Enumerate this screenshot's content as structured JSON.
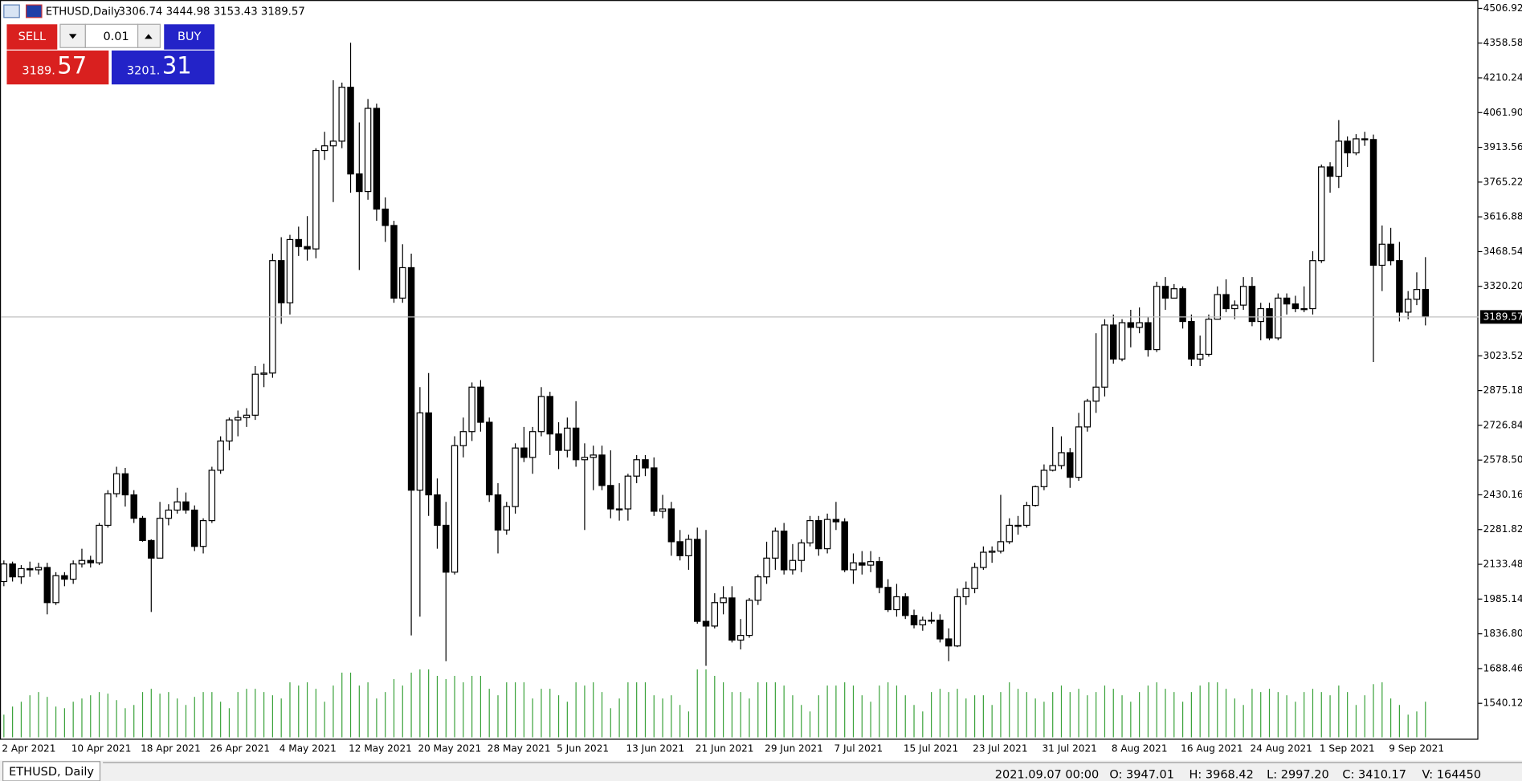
{
  "chart_data": {
    "type": "candlestick",
    "symbol": "ETHUSD,Daily",
    "quote": "3306.74 3444.98 3153.43 3189.57",
    "categories": [
      "2 Apr 2021",
      null,
      null,
      null,
      null,
      null,
      null,
      null,
      "10 Apr 2021",
      null,
      null,
      null,
      null,
      null,
      null,
      null,
      "18 Apr 2021",
      null,
      null,
      null,
      null,
      null,
      null,
      null,
      "26 Apr 2021",
      null,
      null,
      null,
      null,
      null,
      null,
      null,
      "4 May 2021",
      null,
      null,
      null,
      null,
      null,
      null,
      null,
      "12 May 2021",
      null,
      null,
      null,
      null,
      null,
      null,
      null,
      "20 May 2021",
      null,
      null,
      null,
      null,
      null,
      null,
      null,
      "28 May 2021",
      null,
      null,
      null,
      null,
      null,
      null,
      null,
      "5 Jun 2021",
      null,
      null,
      null,
      null,
      null,
      null,
      null,
      "13 Jun 2021",
      null,
      null,
      null,
      null,
      null,
      null,
      null,
      "21 Jun 2021",
      null,
      null,
      null,
      null,
      null,
      null,
      null,
      "29 Jun 2021",
      null,
      null,
      null,
      null,
      null,
      null,
      null,
      "7 Jul 2021",
      null,
      null,
      null,
      null,
      null,
      null,
      null,
      "15 Jul 2021",
      null,
      null,
      null,
      null,
      null,
      null,
      null,
      "23 Jul 2021",
      null,
      null,
      null,
      null,
      null,
      null,
      null,
      "31 Jul 2021",
      null,
      null,
      null,
      null,
      null,
      null,
      null,
      "8 Aug 2021",
      null,
      null,
      null,
      null,
      null,
      null,
      null,
      "16 Aug 2021",
      null,
      null,
      null,
      null,
      null,
      null,
      null,
      "24 Aug 2021",
      null,
      null,
      null,
      null,
      null,
      null,
      null,
      "1 Sep 2021",
      null,
      null,
      null,
      null,
      null,
      null,
      null,
      "9 Sep 2021",
      null,
      null,
      null,
      null
    ],
    "open": [
      2060,
      2135,
      2080,
      2115,
      2110,
      2120,
      1970,
      2085,
      2070,
      2135,
      2150,
      2140,
      2300,
      2435,
      2520,
      2430,
      2330,
      2235,
      2160,
      2330,
      2365,
      2400,
      2365,
      2210,
      2320,
      2535,
      2660,
      2750,
      2760,
      2770,
      2945,
      2950,
      3430,
      3250,
      3520,
      3490,
      3480,
      3900,
      3920,
      3940,
      4170,
      3800,
      3725,
      4080,
      3650,
      3580,
      3270,
      3400,
      2450,
      2780,
      2430,
      2300,
      2100,
      2640,
      2700,
      2890,
      2740,
      2430,
      2280,
      2380,
      2630,
      2590,
      2700,
      2850,
      2690,
      2620,
      2715,
      2580,
      2590,
      2600,
      2470,
      2370,
      2370,
      2510,
      2580,
      2545,
      2360,
      2370,
      2230,
      2170,
      2240,
      1890,
      1870,
      1970,
      1990,
      1810,
      1830,
      1980,
      2080,
      2160,
      2275,
      2110,
      2150,
      2225,
      2320,
      2200,
      2325,
      2315,
      2110,
      2140,
      2130,
      2145,
      2035,
      1940,
      1995,
      1915,
      1875,
      1895,
      1895,
      1815,
      1785,
      1995,
      2030,
      2120,
      2185,
      2190,
      2230,
      2300,
      2300,
      2385,
      2465,
      2535,
      2555,
      2610,
      2505,
      2720,
      2830,
      2890,
      3155,
      3010,
      3165,
      3145,
      3165,
      3050,
      3320,
      3270,
      3310,
      3170,
      3010,
      3030,
      3180,
      3285,
      3225,
      3240,
      3320,
      3170,
      3225,
      3100,
      3270,
      3245,
      3225,
      3225,
      3430,
      3830,
      3790,
      3940,
      3890,
      3950,
      3947.01,
      3410.17,
      3500,
      3430,
      3210,
      3265,
      3306.74
    ],
    "high": [
      2150,
      2145,
      2130,
      2145,
      2140,
      2140,
      2100,
      2100,
      2150,
      2200,
      2170,
      2310,
      2450,
      2550,
      2545,
      2450,
      2340,
      2240,
      2400,
      2390,
      2460,
      2440,
      2385,
      2330,
      2550,
      2680,
      2760,
      2790,
      2800,
      2980,
      2990,
      3460,
      3530,
      3540,
      3575,
      3620,
      3910,
      3980,
      4200,
      4190,
      4360,
      4020,
      4120,
      4100,
      3700,
      3600,
      3500,
      3460,
      2890,
      2950,
      2500,
      2400,
      2680,
      2760,
      2910,
      2920,
      2760,
      2480,
      2400,
      2650,
      2720,
      2720,
      2890,
      2870,
      2740,
      2760,
      2830,
      2650,
      2640,
      2640,
      2620,
      2480,
      2520,
      2600,
      2600,
      2590,
      2430,
      2400,
      2280,
      2260,
      2290,
      2280,
      2010,
      2040,
      2040,
      1900,
      1990,
      2090,
      2230,
      2290,
      2310,
      2220,
      2240,
      2340,
      2340,
      2350,
      2400,
      2330,
      2180,
      2190,
      2190,
      2165,
      2070,
      2050,
      2010,
      1940,
      1910,
      1930,
      1920,
      1860,
      2030,
      2060,
      2140,
      2210,
      2210,
      2430,
      2330,
      2340,
      2400,
      2470,
      2560,
      2720,
      2680,
      2630,
      2780,
      2840,
      3120,
      3180,
      3200,
      3180,
      3220,
      3230,
      3190,
      3340,
      3360,
      3330,
      3320,
      3200,
      3110,
      3200,
      3320,
      3350,
      3260,
      3360,
      3360,
      3250,
      3250,
      3290,
      3290,
      3280,
      3320,
      3470,
      3840,
      3850,
      4030,
      3960,
      3970,
      3980,
      3968.42,
      3580,
      3570,
      3510,
      3300,
      3380,
      3444.98
    ],
    "low": [
      2040,
      2060,
      2050,
      2080,
      2090,
      1920,
      1960,
      2040,
      2050,
      2120,
      2120,
      2130,
      2290,
      2420,
      2380,
      2310,
      2230,
      1930,
      2160,
      2300,
      2350,
      2350,
      2190,
      2180,
      2310,
      2520,
      2620,
      2680,
      2720,
      2750,
      2890,
      2930,
      3160,
      3200,
      3450,
      3430,
      3440,
      3860,
      3680,
      3910,
      3720,
      3390,
      3690,
      3600,
      3510,
      3250,
      3250,
      1830,
      1910,
      2340,
      2200,
      1720,
      2090,
      2590,
      2660,
      2700,
      2400,
      2180,
      2260,
      2350,
      2570,
      2520,
      2680,
      2600,
      2540,
      2590,
      2550,
      2280,
      2450,
      2450,
      2330,
      2320,
      2320,
      2480,
      2510,
      2340,
      2330,
      2170,
      2150,
      2110,
      1880,
      1700,
      1860,
      1920,
      1800,
      1770,
      1820,
      1960,
      2050,
      2110,
      2090,
      2090,
      2100,
      2210,
      2170,
      2180,
      2280,
      2100,
      2050,
      2090,
      2100,
      2010,
      1930,
      1910,
      1900,
      1860,
      1850,
      1880,
      1800,
      1720,
      1780,
      1960,
      2010,
      2110,
      2140,
      2180,
      2220,
      2260,
      2290,
      2380,
      2450,
      2530,
      2540,
      2460,
      2490,
      2700,
      2780,
      2850,
      2990,
      3000,
      3060,
      3120,
      3020,
      3040,
      3220,
      3270,
      3140,
      2980,
      2980,
      3020,
      3180,
      3210,
      3180,
      3220,
      3150,
      3090,
      3090,
      3090,
      3200,
      3210,
      3210,
      3200,
      3420,
      3720,
      3740,
      3830,
      3880,
      3920,
      2997.2,
      3300,
      3410,
      3170,
      3180,
      3240,
      3153.43
    ],
    "close": [
      2135,
      2080,
      2115,
      2110,
      2120,
      1970,
      2085,
      2070,
      2135,
      2150,
      2140,
      2300,
      2435,
      2520,
      2430,
      2330,
      2235,
      2160,
      2330,
      2365,
      2400,
      2365,
      2210,
      2320,
      2535,
      2660,
      2750,
      2760,
      2770,
      2945,
      2950,
      3430,
      3250,
      3520,
      3490,
      3480,
      3900,
      3920,
      3940,
      4170,
      3800,
      3725,
      4080,
      3650,
      3580,
      3270,
      3400,
      2450,
      2780,
      2430,
      2300,
      2100,
      2640,
      2700,
      2890,
      2740,
      2430,
      2280,
      2380,
      2630,
      2590,
      2700,
      2850,
      2690,
      2620,
      2715,
      2580,
      2590,
      2600,
      2470,
      2370,
      2370,
      2510,
      2580,
      2545,
      2360,
      2370,
      2230,
      2170,
      2240,
      1890,
      1870,
      1970,
      1990,
      1810,
      1830,
      1980,
      2080,
      2160,
      2275,
      2110,
      2150,
      2225,
      2320,
      2200,
      2325,
      2315,
      2110,
      2140,
      2130,
      2145,
      2035,
      1940,
      1995,
      1915,
      1875,
      1895,
      1895,
      1815,
      1785,
      1995,
      2030,
      2120,
      2185,
      2190,
      2230,
      2300,
      2300,
      2385,
      2465,
      2535,
      2555,
      2610,
      2505,
      2720,
      2830,
      2890,
      3155,
      3010,
      3165,
      3145,
      3165,
      3050,
      3320,
      3270,
      3310,
      3170,
      3010,
      3030,
      3180,
      3285,
      3225,
      3240,
      3320,
      3170,
      3225,
      3100,
      3270,
      3245,
      3225,
      3225,
      3430,
      3830,
      3790,
      3940,
      3890,
      3950,
      3947.01,
      3410.17,
      3500,
      3430,
      3210,
      3265,
      3306.74,
      3189.57
    ],
    "volume": [
      70000,
      95000,
      110000,
      130000,
      140000,
      125000,
      95000,
      90000,
      110000,
      120000,
      130000,
      140000,
      135000,
      115000,
      90000,
      100000,
      140000,
      150000,
      135000,
      140000,
      120000,
      100000,
      125000,
      140000,
      140000,
      110000,
      90000,
      140000,
      150000,
      150000,
      140000,
      130000,
      120000,
      170000,
      160000,
      170000,
      150000,
      110000,
      160000,
      200000,
      200000,
      160000,
      170000,
      120000,
      140000,
      180000,
      160000,
      200000,
      210000,
      210000,
      190000,
      180000,
      190000,
      170000,
      190000,
      190000,
      150000,
      130000,
      170000,
      170000,
      170000,
      120000,
      150000,
      150000,
      130000,
      110000,
      170000,
      160000,
      170000,
      140000,
      90000,
      120000,
      170000,
      170000,
      170000,
      130000,
      120000,
      130000,
      100000,
      80000,
      210000,
      210000,
      190000,
      170000,
      140000,
      140000,
      120000,
      170000,
      170000,
      170000,
      160000,
      130000,
      100000,
      80000,
      130000,
      160000,
      160000,
      170000,
      160000,
      130000,
      110000,
      160000,
      170000,
      160000,
      130000,
      100000,
      80000,
      140000,
      150000,
      140000,
      150000,
      120000,
      130000,
      130000,
      100000,
      140000,
      170000,
      150000,
      140000,
      120000,
      110000,
      140000,
      160000,
      140000,
      150000,
      130000,
      140000,
      160000,
      150000,
      130000,
      110000,
      140000,
      160000,
      170000,
      150000,
      140000,
      110000,
      140000,
      160000,
      170000,
      170000,
      150000,
      120000,
      100000,
      150000,
      140000,
      150000,
      140000,
      130000,
      110000,
      140000,
      150000,
      140000,
      130000,
      160000,
      140000,
      100000,
      130000,
      164450,
      170000,
      120000,
      100000,
      70000,
      80000,
      110000
    ],
    "up_color": "#ffffff",
    "down_color": "#000000",
    "volume_color": "#3aa23a",
    "price_line_color": "#c0c0c0",
    "ylim": [
      1395,
      4530
    ],
    "yticks": [
      4506.92,
      4358.58,
      4210.24,
      {
        "value": 4061.9,
        "label": "4061.90"
      },
      3913.56,
      3765.22,
      3616.88,
      3468.54,
      {
        "value": 3320.2,
        "label": "3320.20"
      },
      3023.52,
      2875.18,
      2726.84,
      {
        "value": 2578.5,
        "label": "2578.50"
      },
      2430.16,
      2281.82,
      2133.48,
      1985.14,
      {
        "value": 1836.8,
        "label": "1836.80"
      },
      1688.46,
      1540.12
    ],
    "grid": false
  },
  "trade_panel": {
    "sell": "SELL",
    "buy": "BUY",
    "lot": "0.01",
    "bid_main": "3189.",
    "bid_big": "57",
    "ask_main": "3201.",
    "ask_big": "31"
  },
  "tab": "ETHUSD, Daily",
  "status_bar": {
    "time": "2021.09.07 00:00",
    "open": "O: 3947.01",
    "high": "H: 3968.42",
    "low": "L: 2997.20",
    "close": "C: 3410.17",
    "volume": "V: 164450"
  }
}
